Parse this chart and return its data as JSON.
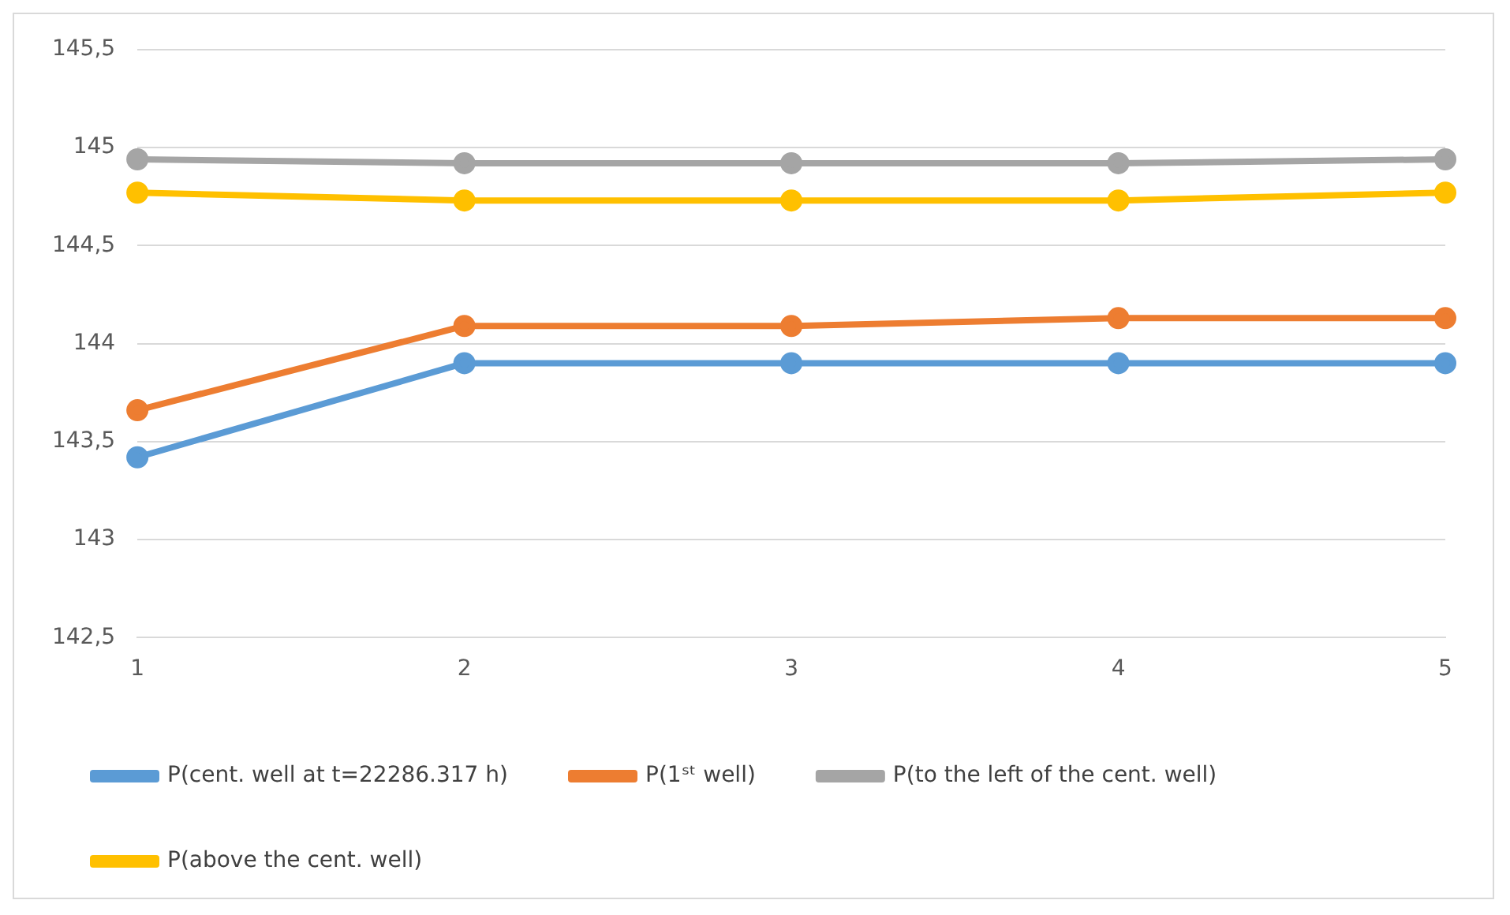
{
  "chart_data": {
    "type": "line",
    "categories": [
      "1",
      "2",
      "3",
      "4",
      "5"
    ],
    "series": [
      {
        "name": "P(cent. well at t=22286.317 h)",
        "color": "#5b9bd5",
        "values": [
          143.42,
          143.9,
          143.9,
          143.9,
          143.9
        ]
      },
      {
        "name": "P(1ˢᵗ well)",
        "color": "#ed7d31",
        "values": [
          143.66,
          144.09,
          144.09,
          144.13,
          144.13
        ]
      },
      {
        "name": "P(to the left of the cent. well)",
        "color": "#a5a5a5",
        "values": [
          144.94,
          144.92,
          144.92,
          144.92,
          144.94
        ]
      },
      {
        "name": "P(above the cent. well)",
        "color": "#ffc000",
        "values": [
          144.77,
          144.73,
          144.73,
          144.73,
          144.77
        ]
      }
    ],
    "ylim": [
      142.5,
      145.5
    ],
    "yticks": [
      {
        "value": 142.5,
        "label": "142,5"
      },
      143,
      {
        "value": 143.5,
        "label": "143,5"
      },
      144,
      {
        "value": 144.5,
        "label": "144,5"
      },
      145,
      {
        "value": 145.5,
        "label": "145,5"
      }
    ],
    "grid": "y",
    "legend": "bottom",
    "marker": "circle",
    "line_style": "solid"
  }
}
